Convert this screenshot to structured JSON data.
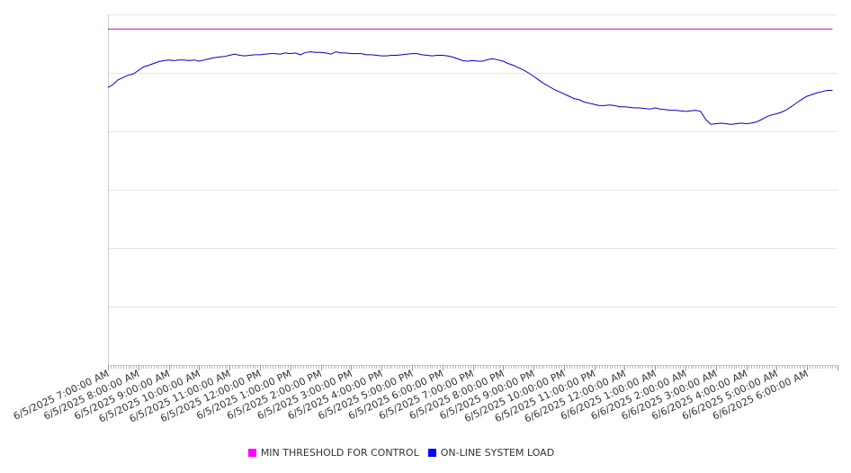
{
  "chart_data": {
    "type": "line",
    "title": "",
    "xlabel": "",
    "ylabel": "",
    "ylim": [
      0,
      6
    ],
    "y_gridlines": [
      0,
      1,
      2,
      3,
      4,
      5,
      6
    ],
    "y_tick_labels_visible": false,
    "x_tick_labels": [
      "6/5/2025 7:00:00 AM",
      "6/5/2025 8:00:00 AM",
      "6/5/2025 9:00:00 AM",
      "6/5/2025 10:00:00 AM",
      "6/5/2025 11:00:00 AM",
      "6/5/2025 12:00:00 PM",
      "6/5/2025 1:00:00 PM",
      "6/5/2025 2:00:00 PM",
      "6/5/2025 3:00:00 PM",
      "6/5/2025 4:00:00 PM",
      "6/5/2025 5:00:00 PM",
      "6/5/2025 6:00:00 PM",
      "6/5/2025 7:00:00 PM",
      "6/5/2025 8:00:00 PM",
      "6/5/2025 9:00:00 PM",
      "6/5/2025 10:00:00 PM",
      "6/5/2025 11:00:00 PM",
      "6/6/2025 12:00:00 AM",
      "6/6/2025 1:00:00 AM",
      "6/6/2025 2:00:00 AM",
      "6/6/2025 3:00:00 AM",
      "6/6/2025 4:00:00 AM",
      "6/6/2025 5:00:00 AM",
      "6/6/2025 6:00:00 AM"
    ],
    "grid": true,
    "legend_position": "bottom-center",
    "series": [
      {
        "name": "MIN THRESHOLD FOR CONTROL",
        "color": "#cc00cc",
        "x": [
          "6/5/2025 7:00:00 AM",
          "6/6/2025 6:50:00 AM"
        ],
        "values": [
          5.75,
          5.75
        ]
      },
      {
        "name": "ON-LINE SYSTEM LOAD",
        "color": "#0000cc",
        "x": [
          "6/5/2025 7:00:00 AM",
          "6/5/2025 7:10:00 AM",
          "6/5/2025 7:20:00 AM",
          "6/5/2025 7:30:00 AM",
          "6/5/2025 7:40:00 AM",
          "6/5/2025 7:50:00 AM",
          "6/5/2025 8:00:00 AM",
          "6/5/2025 8:10:00 AM",
          "6/5/2025 8:20:00 AM",
          "6/5/2025 8:30:00 AM",
          "6/5/2025 8:40:00 AM",
          "6/5/2025 8:50:00 AM",
          "6/5/2025 9:00:00 AM",
          "6/5/2025 9:10:00 AM",
          "6/5/2025 9:20:00 AM",
          "6/5/2025 9:30:00 AM",
          "6/5/2025 9:40:00 AM",
          "6/5/2025 9:50:00 AM",
          "6/5/2025 10:00:00 AM",
          "6/5/2025 10:10:00 AM",
          "6/5/2025 10:20:00 AM",
          "6/5/2025 10:30:00 AM",
          "6/5/2025 10:40:00 AM",
          "6/5/2025 10:50:00 AM",
          "6/5/2025 11:00:00 AM",
          "6/5/2025 11:10:00 AM",
          "6/5/2025 11:20:00 AM",
          "6/5/2025 11:30:00 AM",
          "6/5/2025 11:40:00 AM",
          "6/5/2025 11:50:00 AM",
          "6/5/2025 12:00:00 PM",
          "6/5/2025 12:10:00 PM",
          "6/5/2025 12:20:00 PM",
          "6/5/2025 12:30:00 PM",
          "6/5/2025 12:40:00 PM",
          "6/5/2025 12:50:00 PM",
          "6/5/2025 1:00:00 PM",
          "6/5/2025 1:10:00 PM",
          "6/5/2025 1:20:00 PM",
          "6/5/2025 1:30:00 PM",
          "6/5/2025 1:40:00 PM",
          "6/5/2025 1:50:00 PM",
          "6/5/2025 2:00:00 PM",
          "6/5/2025 2:10:00 PM",
          "6/5/2025 2:20:00 PM",
          "6/5/2025 2:30:00 PM",
          "6/5/2025 2:40:00 PM",
          "6/5/2025 2:50:00 PM",
          "6/5/2025 3:00:00 PM",
          "6/5/2025 3:10:00 PM",
          "6/5/2025 3:20:00 PM",
          "6/5/2025 3:30:00 PM",
          "6/5/2025 3:40:00 PM",
          "6/5/2025 3:50:00 PM",
          "6/5/2025 4:00:00 PM",
          "6/5/2025 4:10:00 PM",
          "6/5/2025 4:20:00 PM",
          "6/5/2025 4:30:00 PM",
          "6/5/2025 4:40:00 PM",
          "6/5/2025 4:50:00 PM",
          "6/5/2025 5:00:00 PM",
          "6/5/2025 5:10:00 PM",
          "6/5/2025 5:20:00 PM",
          "6/5/2025 5:30:00 PM",
          "6/5/2025 5:40:00 PM",
          "6/5/2025 5:50:00 PM",
          "6/5/2025 6:00:00 PM",
          "6/5/2025 6:10:00 PM",
          "6/5/2025 6:20:00 PM",
          "6/5/2025 6:30:00 PM",
          "6/5/2025 6:40:00 PM",
          "6/5/2025 6:50:00 PM",
          "6/5/2025 7:00:00 PM",
          "6/5/2025 7:10:00 PM",
          "6/5/2025 7:20:00 PM",
          "6/5/2025 7:30:00 PM",
          "6/5/2025 7:40:00 PM",
          "6/5/2025 7:50:00 PM",
          "6/5/2025 8:00:00 PM",
          "6/5/2025 8:10:00 PM",
          "6/5/2025 8:20:00 PM",
          "6/5/2025 8:30:00 PM",
          "6/5/2025 8:40:00 PM",
          "6/5/2025 8:50:00 PM",
          "6/5/2025 9:00:00 PM",
          "6/5/2025 9:10:00 PM",
          "6/5/2025 9:20:00 PM",
          "6/5/2025 9:30:00 PM",
          "6/5/2025 9:40:00 PM",
          "6/5/2025 9:50:00 PM",
          "6/5/2025 10:00:00 PM",
          "6/5/2025 10:10:00 PM",
          "6/5/2025 10:20:00 PM",
          "6/5/2025 10:30:00 PM",
          "6/5/2025 10:40:00 PM",
          "6/5/2025 10:50:00 PM",
          "6/5/2025 11:00:00 PM",
          "6/5/2025 11:10:00 PM",
          "6/5/2025 11:20:00 PM",
          "6/5/2025 11:30:00 PM",
          "6/5/2025 11:40:00 PM",
          "6/5/2025 11:50:00 PM",
          "6/6/2025 12:00:00 AM",
          "6/6/2025 12:10:00 AM",
          "6/6/2025 12:20:00 AM",
          "6/6/2025 12:30:00 AM",
          "6/6/2025 12:40:00 AM",
          "6/6/2025 12:50:00 AM",
          "6/6/2025 1:00:00 AM",
          "6/6/2025 1:10:00 AM",
          "6/6/2025 1:20:00 AM",
          "6/6/2025 1:30:00 AM",
          "6/6/2025 1:40:00 AM",
          "6/6/2025 1:50:00 AM",
          "6/6/2025 2:00:00 AM",
          "6/6/2025 2:10:00 AM",
          "6/6/2025 2:20:00 AM",
          "6/6/2025 2:30:00 AM",
          "6/6/2025 2:40:00 AM",
          "6/6/2025 2:50:00 AM",
          "6/6/2025 3:00:00 AM",
          "6/6/2025 3:10:00 AM",
          "6/6/2025 3:20:00 AM",
          "6/6/2025 3:30:00 AM",
          "6/6/2025 3:40:00 AM",
          "6/6/2025 3:50:00 AM",
          "6/6/2025 4:00:00 AM",
          "6/6/2025 4:10:00 AM",
          "6/6/2025 4:20:00 AM",
          "6/6/2025 4:30:00 AM",
          "6/6/2025 4:40:00 AM",
          "6/6/2025 4:50:00 AM",
          "6/6/2025 5:00:00 AM",
          "6/6/2025 5:10:00 AM",
          "6/6/2025 5:20:00 AM",
          "6/6/2025 5:30:00 AM",
          "6/6/2025 5:40:00 AM",
          "6/6/2025 5:50:00 AM",
          "6/6/2025 6:00:00 AM",
          "6/6/2025 6:10:00 AM",
          "6/6/2025 6:20:00 AM",
          "6/6/2025 6:30:00 AM",
          "6/6/2025 6:40:00 AM",
          "6/6/2025 6:50:00 AM"
        ],
        "values": [
          4.75,
          4.8,
          4.88,
          4.92,
          4.96,
          4.98,
          5.04,
          5.1,
          5.13,
          5.16,
          5.19,
          5.21,
          5.22,
          5.21,
          5.22,
          5.22,
          5.21,
          5.22,
          5.2,
          5.22,
          5.24,
          5.26,
          5.27,
          5.28,
          5.3,
          5.32,
          5.3,
          5.29,
          5.3,
          5.31,
          5.31,
          5.32,
          5.33,
          5.33,
          5.32,
          5.34,
          5.33,
          5.34,
          5.31,
          5.35,
          5.36,
          5.35,
          5.35,
          5.34,
          5.32,
          5.36,
          5.34,
          5.34,
          5.33,
          5.33,
          5.33,
          5.31,
          5.31,
          5.3,
          5.29,
          5.29,
          5.3,
          5.3,
          5.31,
          5.32,
          5.33,
          5.33,
          5.31,
          5.3,
          5.29,
          5.3,
          5.3,
          5.29,
          5.27,
          5.24,
          5.21,
          5.2,
          5.21,
          5.2,
          5.2,
          5.23,
          5.24,
          5.22,
          5.2,
          5.16,
          5.13,
          5.09,
          5.05,
          5.0,
          4.94,
          4.88,
          4.82,
          4.77,
          4.72,
          4.68,
          4.64,
          4.6,
          4.56,
          4.54,
          4.5,
          4.48,
          4.46,
          4.44,
          4.44,
          4.45,
          4.44,
          4.42,
          4.42,
          4.41,
          4.4,
          4.4,
          4.39,
          4.38,
          4.4,
          4.38,
          4.37,
          4.36,
          4.36,
          4.35,
          4.34,
          4.35,
          4.36,
          4.34,
          4.2,
          4.12,
          4.13,
          4.14,
          4.13,
          4.12,
          4.13,
          4.14,
          4.13,
          4.14,
          4.16,
          4.2,
          4.25,
          4.28,
          4.3,
          4.33,
          4.37,
          4.43,
          4.49,
          4.55,
          4.6,
          4.63,
          4.66,
          4.68,
          4.7,
          4.7
        ]
      }
    ]
  }
}
